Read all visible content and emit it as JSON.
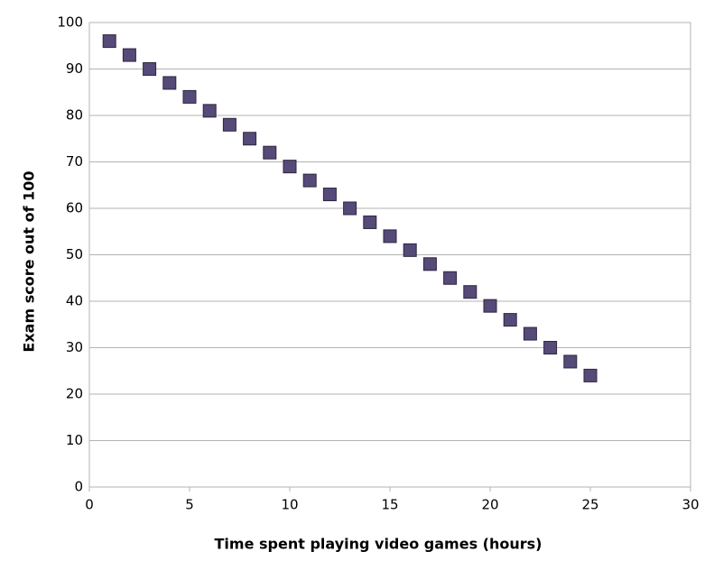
{
  "chart_data": {
    "type": "scatter",
    "x_label": "Time spent playing video games (hours)",
    "y_label": "Exam score out of 100",
    "series": [
      {
        "color": "#564a78",
        "x": [
          1,
          2,
          3,
          4,
          5,
          6,
          7,
          8,
          9,
          10,
          11,
          12,
          13,
          14,
          15,
          16,
          17,
          18,
          19,
          20,
          21,
          22,
          23,
          24,
          25
        ],
        "values": [
          96,
          93,
          90,
          87,
          84,
          81,
          78,
          75,
          72,
          69,
          66,
          63,
          60,
          57,
          54,
          51,
          48,
          45,
          42,
          39,
          36,
          33,
          30,
          27,
          24
        ]
      }
    ],
    "xlim": [
      0,
      30
    ],
    "xticks": [
      0,
      5,
      10,
      15,
      20,
      25,
      30
    ],
    "ylim": [
      0,
      100
    ],
    "yticks": [
      0,
      10,
      20,
      30,
      40,
      50,
      60,
      70,
      80,
      90,
      100
    ],
    "grid": true
  }
}
